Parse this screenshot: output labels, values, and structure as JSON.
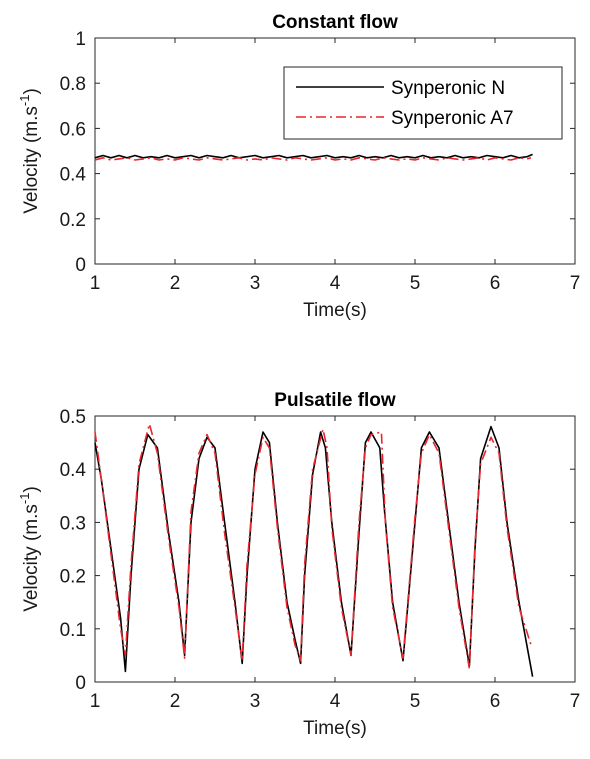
{
  "colors": {
    "synperonic_n": "#000000",
    "synperonic_a7": "#e8262e",
    "axis": "#262626"
  },
  "chart_data": [
    {
      "type": "line",
      "title": "Constant flow",
      "xlabel": "Time(s)",
      "ylabel": "Velocity (m.s",
      "ylabel_sup": "-1",
      "ylabel_tail": ")",
      "xlim": [
        1,
        7
      ],
      "ylim": [
        0,
        1
      ],
      "xticks": [
        "1",
        "2",
        "3",
        "4",
        "5",
        "6",
        "7"
      ],
      "yticks": [
        "0",
        "0.2",
        "0.4",
        "0.6",
        "0.8",
        "1"
      ],
      "legend": {
        "position": "top-right"
      },
      "series": [
        {
          "name": "Synperonic N",
          "style": "solid",
          "color": "#000000",
          "x": [
            1.0,
            1.1,
            1.2,
            1.3,
            1.4,
            1.5,
            1.6,
            1.7,
            1.8,
            1.9,
            2.0,
            2.1,
            2.2,
            2.3,
            2.4,
            2.5,
            2.6,
            2.7,
            2.8,
            2.9,
            3.0,
            3.1,
            3.2,
            3.3,
            3.4,
            3.5,
            3.6,
            3.7,
            3.8,
            3.9,
            4.0,
            4.1,
            4.2,
            4.3,
            4.4,
            4.5,
            4.6,
            4.7,
            4.8,
            4.9,
            5.0,
            5.1,
            5.2,
            5.3,
            5.4,
            5.5,
            5.6,
            5.7,
            5.8,
            5.9,
            6.0,
            6.1,
            6.2,
            6.3,
            6.4,
            6.47
          ],
          "y": [
            0.47,
            0.48,
            0.47,
            0.48,
            0.47,
            0.48,
            0.47,
            0.475,
            0.47,
            0.48,
            0.47,
            0.475,
            0.48,
            0.47,
            0.48,
            0.475,
            0.47,
            0.48,
            0.47,
            0.475,
            0.48,
            0.47,
            0.475,
            0.48,
            0.47,
            0.475,
            0.48,
            0.47,
            0.475,
            0.48,
            0.47,
            0.475,
            0.47,
            0.48,
            0.47,
            0.475,
            0.47,
            0.48,
            0.47,
            0.475,
            0.47,
            0.48,
            0.47,
            0.475,
            0.47,
            0.48,
            0.47,
            0.475,
            0.47,
            0.48,
            0.475,
            0.47,
            0.48,
            0.47,
            0.475,
            0.485
          ]
        },
        {
          "name": "Synperonic A7",
          "style": "dashdot",
          "color": "#e8262e",
          "x": [
            1.0,
            1.1,
            1.2,
            1.3,
            1.4,
            1.5,
            1.6,
            1.7,
            1.8,
            1.9,
            2.0,
            2.1,
            2.2,
            2.3,
            2.4,
            2.5,
            2.6,
            2.7,
            2.8,
            2.9,
            3.0,
            3.1,
            3.2,
            3.3,
            3.4,
            3.5,
            3.6,
            3.7,
            3.8,
            3.9,
            4.0,
            4.1,
            4.2,
            4.3,
            4.4,
            4.5,
            4.6,
            4.7,
            4.8,
            4.9,
            5.0,
            5.1,
            5.2,
            5.3,
            5.4,
            5.5,
            5.6,
            5.7,
            5.8,
            5.9,
            6.0,
            6.1,
            6.2,
            6.3,
            6.4,
            6.45
          ],
          "y": [
            0.46,
            0.47,
            0.46,
            0.465,
            0.47,
            0.46,
            0.465,
            0.47,
            0.46,
            0.465,
            0.46,
            0.47,
            0.465,
            0.46,
            0.47,
            0.465,
            0.46,
            0.465,
            0.47,
            0.46,
            0.465,
            0.46,
            0.47,
            0.465,
            0.46,
            0.47,
            0.465,
            0.46,
            0.465,
            0.47,
            0.46,
            0.465,
            0.46,
            0.47,
            0.465,
            0.46,
            0.47,
            0.465,
            0.46,
            0.465,
            0.46,
            0.47,
            0.465,
            0.46,
            0.47,
            0.465,
            0.46,
            0.465,
            0.47,
            0.46,
            0.47,
            0.465,
            0.46,
            0.47,
            0.465,
            0.47
          ]
        }
      ]
    },
    {
      "type": "line",
      "title": "Pulsatile flow",
      "xlabel": "Time(s)",
      "ylabel": "Velocity (m.s",
      "ylabel_sup": "-1",
      "ylabel_tail": ")",
      "xlim": [
        1,
        7
      ],
      "ylim": [
        0,
        0.5
      ],
      "xticks": [
        "1",
        "2",
        "3",
        "4",
        "5",
        "6",
        "7"
      ],
      "yticks": [
        "0",
        "0.1",
        "0.2",
        "0.3",
        "0.4",
        "0.5"
      ],
      "series": [
        {
          "name": "Synperonic N",
          "style": "solid",
          "color": "#000000",
          "x": [
            1.0,
            1.08,
            1.2,
            1.32,
            1.38,
            1.45,
            1.55,
            1.66,
            1.78,
            1.92,
            2.05,
            2.12,
            2.2,
            2.3,
            2.4,
            2.5,
            2.62,
            2.75,
            2.84,
            2.9,
            3.0,
            3.1,
            3.18,
            3.28,
            3.4,
            3.5,
            3.57,
            3.62,
            3.72,
            3.82,
            3.88,
            3.96,
            4.08,
            4.2,
            4.3,
            4.38,
            4.45,
            4.56,
            4.62,
            4.72,
            4.85,
            5.0,
            5.08,
            5.18,
            5.3,
            5.42,
            5.55,
            5.68,
            5.75,
            5.82,
            5.95,
            6.05,
            6.15,
            6.3,
            6.47
          ],
          "y": [
            0.45,
            0.38,
            0.25,
            0.12,
            0.02,
            0.2,
            0.4,
            0.465,
            0.44,
            0.28,
            0.15,
            0.05,
            0.3,
            0.42,
            0.46,
            0.44,
            0.3,
            0.15,
            0.035,
            0.2,
            0.4,
            0.47,
            0.45,
            0.3,
            0.15,
            0.08,
            0.035,
            0.2,
            0.39,
            0.47,
            0.44,
            0.3,
            0.15,
            0.05,
            0.28,
            0.45,
            0.47,
            0.44,
            0.32,
            0.15,
            0.04,
            0.3,
            0.44,
            0.47,
            0.44,
            0.3,
            0.15,
            0.03,
            0.25,
            0.42,
            0.48,
            0.44,
            0.3,
            0.15,
            0.01
          ]
        },
        {
          "name": "Synperonic A7",
          "style": "dashdot",
          "color": "#e8262e",
          "x": [
            1.0,
            1.08,
            1.2,
            1.32,
            1.38,
            1.45,
            1.55,
            1.68,
            1.78,
            1.92,
            2.05,
            2.12,
            2.2,
            2.3,
            2.4,
            2.5,
            2.62,
            2.75,
            2.84,
            2.9,
            3.0,
            3.1,
            3.18,
            3.28,
            3.4,
            3.5,
            3.57,
            3.62,
            3.72,
            3.85,
            3.9,
            3.96,
            4.08,
            4.2,
            4.3,
            4.38,
            4.45,
            4.58,
            4.63,
            4.72,
            4.85,
            5.0,
            5.08,
            5.18,
            5.3,
            5.42,
            5.55,
            5.68,
            5.75,
            5.82,
            5.95,
            6.05,
            6.15,
            6.3,
            6.45
          ],
          "y": [
            0.47,
            0.38,
            0.24,
            0.1,
            0.05,
            0.22,
            0.41,
            0.485,
            0.43,
            0.27,
            0.14,
            0.045,
            0.32,
            0.43,
            0.465,
            0.43,
            0.28,
            0.14,
            0.04,
            0.22,
            0.39,
            0.46,
            0.44,
            0.29,
            0.14,
            0.07,
            0.04,
            0.22,
            0.4,
            0.475,
            0.44,
            0.29,
            0.14,
            0.05,
            0.3,
            0.44,
            0.465,
            0.47,
            0.3,
            0.14,
            0.045,
            0.31,
            0.43,
            0.465,
            0.43,
            0.29,
            0.14,
            0.025,
            0.26,
            0.41,
            0.46,
            0.43,
            0.29,
            0.14,
            0.07
          ]
        }
      ]
    }
  ]
}
